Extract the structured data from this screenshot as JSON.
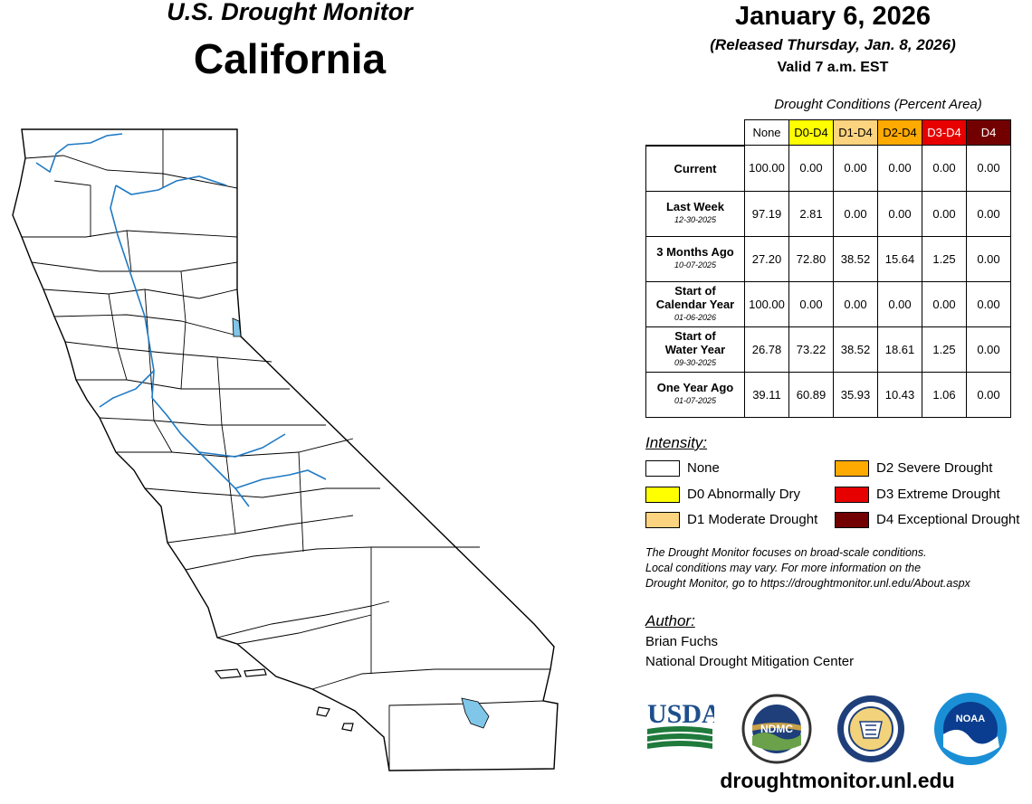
{
  "header": {
    "title_line1": "U.S. Drought Monitor",
    "title_line2": "California",
    "date": "January 6, 2026",
    "released": "(Released Thursday, Jan. 8, 2026)",
    "valid": "Valid 7 a.m. EST"
  },
  "table": {
    "title": "Drought Conditions (Percent Area)",
    "columns": [
      "None",
      "D0-D4",
      "D1-D4",
      "D2-D4",
      "D3-D4",
      "D4"
    ],
    "column_colors": [
      "#ffffff",
      "#ffff00",
      "#fcd37f",
      "#ffaa00",
      "#e60000",
      "#730000"
    ],
    "rows": [
      {
        "label": "Current",
        "date": "",
        "values": [
          "100.00",
          "0.00",
          "0.00",
          "0.00",
          "0.00",
          "0.00"
        ]
      },
      {
        "label": "Last Week",
        "date": "12-30-2025",
        "values": [
          "97.19",
          "2.81",
          "0.00",
          "0.00",
          "0.00",
          "0.00"
        ]
      },
      {
        "label": "3 Months Ago",
        "date": "10-07-2025",
        "values": [
          "27.20",
          "72.80",
          "38.52",
          "15.64",
          "1.25",
          "0.00"
        ]
      },
      {
        "label": "Start of\nCalendar Year",
        "date": "01-06-2026",
        "values": [
          "100.00",
          "0.00",
          "0.00",
          "0.00",
          "0.00",
          "0.00"
        ]
      },
      {
        "label": "Start of\nWater Year",
        "date": "09-30-2025",
        "values": [
          "26.78",
          "73.22",
          "38.52",
          "18.61",
          "1.25",
          "0.00"
        ]
      },
      {
        "label": "One Year Ago",
        "date": "01-07-2025",
        "values": [
          "39.11",
          "60.89",
          "35.93",
          "10.43",
          "1.06",
          "0.00"
        ]
      }
    ]
  },
  "legend": {
    "title": "Intensity:",
    "items": [
      {
        "label": "None",
        "color": "#ffffff"
      },
      {
        "label": "D0 Abnormally Dry",
        "color": "#ffff00"
      },
      {
        "label": "D1 Moderate Drought",
        "color": "#fcd37f"
      },
      {
        "label": "D2 Severe Drought",
        "color": "#ffaa00"
      },
      {
        "label": "D3 Extreme Drought",
        "color": "#e60000"
      },
      {
        "label": "D4 Exceptional Drought",
        "color": "#730000"
      }
    ]
  },
  "disclaimer": {
    "line1": "The Drought Monitor focuses on broad-scale conditions.",
    "line2": "Local conditions may vary. For more information on the",
    "line3": "Drought Monitor, go to https://droughtmonitor.unl.edu/About.aspx"
  },
  "author": {
    "heading": "Author:",
    "name": "Brian Fuchs",
    "org": "National Drought Mitigation Center"
  },
  "logos": {
    "usda": "USDA",
    "ndmc": "NDMC",
    "noaa": "NOAA"
  },
  "map": {
    "colors": {
      "water": "#7fc6e8",
      "river": "#1f7ac4",
      "land": "#ffffff",
      "border": "#000000"
    }
  },
  "footer": {
    "website": "droughtmonitor.unl.edu"
  }
}
